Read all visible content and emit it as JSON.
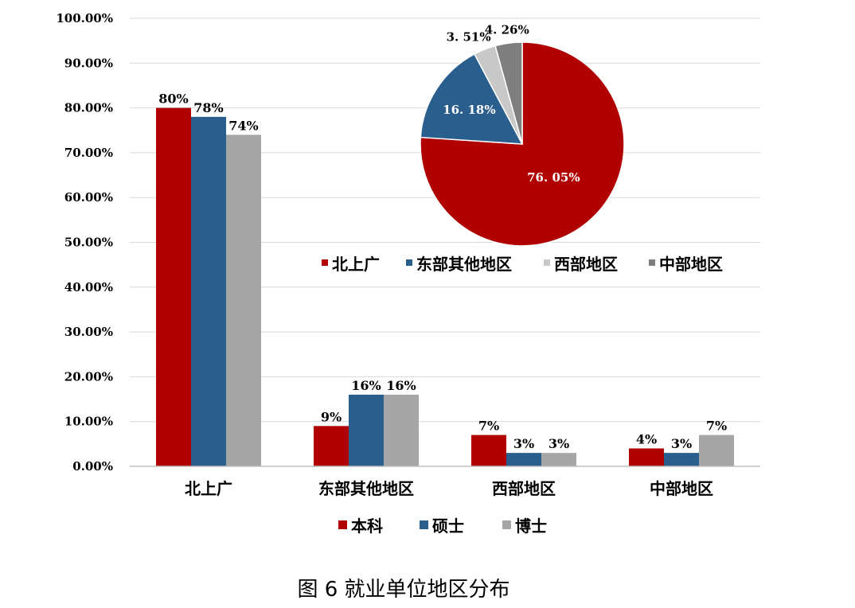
{
  "caption": "图 6  就业单位地区分布",
  "colors": {
    "undergrad": "#B00000",
    "master": "#2A5E8C",
    "phd": "#A6A6A6",
    "central": "#7F7F7F",
    "western_pie": "#C8C8C8",
    "grid": "#D9D9D9",
    "axis": "#BFBFBF"
  },
  "chart_data": [
    {
      "type": "bar",
      "categories": [
        "北上广",
        "东部其他地区",
        "西部地区",
        "中部地区"
      ],
      "series": [
        {
          "name": "本科",
          "values": [
            80,
            9,
            7,
            4
          ],
          "labels": [
            "80%",
            "9%",
            "7%",
            "4%"
          ]
        },
        {
          "name": "硕士",
          "values": [
            78,
            16,
            3,
            3
          ],
          "labels": [
            "78%",
            "16%",
            "3%",
            "3%"
          ]
        },
        {
          "name": "博士",
          "values": [
            74,
            16,
            3,
            7
          ],
          "labels": [
            "74%",
            "16%",
            "3%",
            "7%"
          ]
        }
      ],
      "y_ticks": [
        "0.00%",
        "10.00%",
        "20.00%",
        "30.00%",
        "40.00%",
        "50.00%",
        "60.00%",
        "70.00%",
        "80.00%",
        "90.00%",
        "100.00%"
      ],
      "ylim": [
        0,
        100
      ],
      "grid": true,
      "legend_position": "bottom"
    },
    {
      "type": "pie",
      "slices": [
        {
          "name": "北上广",
          "value": 76.05,
          "label": "76. 05%"
        },
        {
          "name": "东部其他地区",
          "value": 16.18,
          "label": "16. 18%"
        },
        {
          "name": "西部地区",
          "value": 3.51,
          "label": "3. 51%"
        },
        {
          "name": "中部地区",
          "value": 4.26,
          "label": "4. 26%"
        }
      ],
      "legend_position": "bottom"
    }
  ]
}
